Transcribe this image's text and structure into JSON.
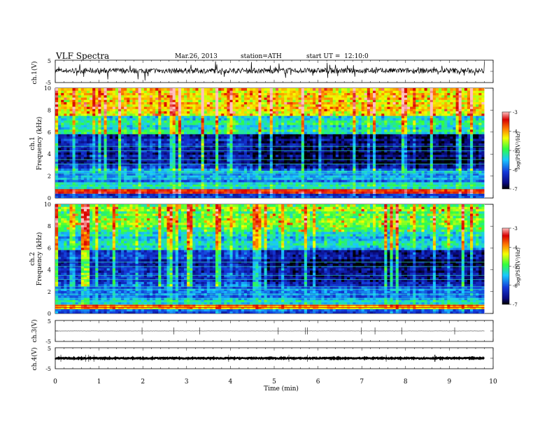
{
  "header": {
    "title": "VLF Spectra",
    "date": "Mar.26, 2013",
    "station": "station=ATH",
    "start": "start UT =  12:10:0"
  },
  "colors": {
    "scale_stops": [
      "#000000",
      "#0a0a80",
      "#1438d8",
      "#19c8ff",
      "#30ff40",
      "#f4ff00",
      "#ff7c00",
      "#d80000",
      "#ffc0c0"
    ]
  },
  "chart_data": [
    {
      "type": "line",
      "panel": "ch1-waveform",
      "ylabel": "ch.1(V)",
      "ylim": [
        -5,
        5
      ],
      "yticks": [
        "5",
        "-5"
      ],
      "xlim": [
        0,
        10
      ],
      "baseline": 0.3,
      "noise_amplitude": 1.2
    },
    {
      "type": "heatmap",
      "panel": "ch1-spectrogram",
      "ylabel_top": "ch.1",
      "ylabel": "Frequency (kHz)",
      "ylim": [
        0,
        10
      ],
      "yticks": [
        "0",
        "2",
        "4",
        "6",
        "8",
        "10"
      ],
      "xlim": [
        0,
        10
      ],
      "data_end_min": 9.8,
      "colorbar": {
        "label": "log(PSD(V²/Hz)",
        "range": [
          -7,
          -3
        ],
        "ticks": [
          "-3",
          "-4",
          "-5",
          "-6",
          "-7"
        ]
      },
      "bands_logpsd": [
        {
          "f": [
            0,
            0.4
          ],
          "v": -6.2
        },
        {
          "f": [
            0.4,
            0.8
          ],
          "v": -3.6
        },
        {
          "f": [
            0.8,
            1.5
          ],
          "v": -5.2
        },
        {
          "f": [
            1.5,
            2.7
          ],
          "v": -5.7
        },
        {
          "f": [
            2.7,
            5.8
          ],
          "v": -6.4
        },
        {
          "f": [
            5.8,
            7.5
          ],
          "v": -5.2
        },
        {
          "f": [
            7.5,
            10
          ],
          "v": -4.3
        }
      ]
    },
    {
      "type": "heatmap",
      "panel": "ch2-spectrogram",
      "ylabel_top": "ch.2",
      "ylabel": "Frequency (kHz)",
      "ylim": [
        0,
        10
      ],
      "yticks": [
        "0",
        "2",
        "4",
        "6",
        "8",
        "10"
      ],
      "xlim": [
        0,
        10
      ],
      "data_end_min": 9.8,
      "colorbar": {
        "label": "log(PSD(V²/Hz)",
        "range": [
          -7,
          -3
        ],
        "ticks": [
          "-3",
          "-4",
          "-5",
          "-6",
          "-7"
        ]
      },
      "bands_logpsd": [
        {
          "f": [
            0,
            0.4
          ],
          "v": -6.0
        },
        {
          "f": [
            0.4,
            0.8
          ],
          "v": -4.2
        },
        {
          "f": [
            0.8,
            1.5
          ],
          "v": -5.4
        },
        {
          "f": [
            1.5,
            2.7
          ],
          "v": -5.8
        },
        {
          "f": [
            2.7,
            5.8
          ],
          "v": -6.3
        },
        {
          "f": [
            5.8,
            7.5
          ],
          "v": -5.4
        },
        {
          "f": [
            7.5,
            10
          ],
          "v": -4.8
        }
      ]
    },
    {
      "type": "line",
      "panel": "ch3-waveform",
      "ylabel": "ch.3(V)",
      "ylim": [
        -5,
        5
      ],
      "yticks": [
        "5",
        "-5"
      ],
      "xlim": [
        0,
        10
      ],
      "baseline": 0,
      "noise_amplitude": 0.05
    },
    {
      "type": "line",
      "panel": "ch4-waveform",
      "ylabel": "ch.4(V)",
      "ylim": [
        -5,
        5
      ],
      "yticks": [
        "5",
        "-5"
      ],
      "xlim": [
        0,
        10
      ],
      "baseline": 0,
      "noise_amplitude": 0.25
    }
  ],
  "x_axis": {
    "label": "Time (min)",
    "ticks": [
      "0",
      "1",
      "2",
      "3",
      "4",
      "5",
      "6",
      "7",
      "8",
      "9",
      "10"
    ]
  }
}
